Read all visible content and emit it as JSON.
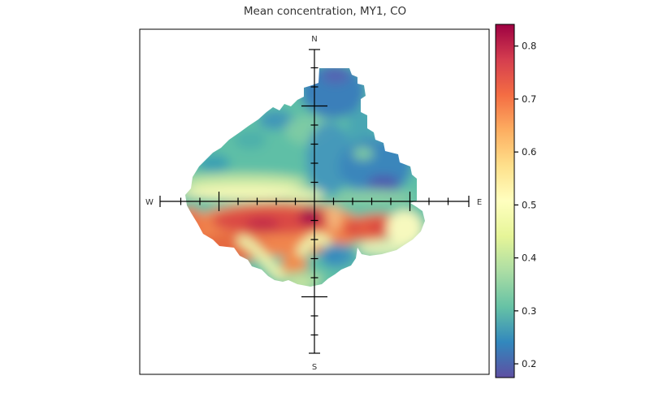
{
  "title": "Mean concentration, MY1, CO",
  "compass": {
    "north": "N",
    "east": "E",
    "south": "S",
    "west": "W"
  },
  "colorbar": {
    "ticks": [
      {
        "label": "0.2",
        "value": 0.2
      },
      {
        "label": "0.3",
        "value": 0.3
      },
      {
        "label": "0.4",
        "value": 0.4
      },
      {
        "label": "0.5",
        "value": 0.5
      },
      {
        "label": "0.6",
        "value": 0.6
      },
      {
        "label": "0.7",
        "value": 0.7
      },
      {
        "label": "0.8",
        "value": 0.8
      }
    ],
    "min_value": 0.17,
    "max_value": 0.84,
    "palette_top_to_bottom": [
      "#9E0142",
      "#D53E4F",
      "#F46D43",
      "#FDAE61",
      "#FEE08B",
      "#FFFFBF",
      "#E6F598",
      "#ABDDA4",
      "#66C2A5",
      "#3288BD",
      "#5E4FA2"
    ]
  },
  "chart_data": {
    "type": "heatmap",
    "subtype": "bivariate-polar-plot",
    "title": "Mean concentration, MY1, CO",
    "site": "MY1",
    "pollutant": "CO",
    "statistic": "Mean concentration",
    "color_scale": {
      "range": [
        0.17,
        0.84
      ],
      "tick_values": [
        0.2,
        0.3,
        0.4,
        0.5,
        0.6,
        0.7,
        0.8
      ],
      "palette": "Spectral (low=blue-purple, high=dark red)"
    },
    "compass_labels": [
      "N",
      "E",
      "S",
      "W"
    ],
    "radial_ticks": {
      "minor_per_side": 7,
      "major_at_tick": 5,
      "axis_end_bar_at_tick": 8,
      "tick_value_labels_visible": false
    },
    "features": [
      {
        "direction": "SW quadrant near centre",
        "description": "global maximum, dark red core just west of centre below the W-E axis",
        "value": 0.82
      },
      {
        "direction": "W to SW",
        "description": "broad high-concentration red/orange band south of the west axis",
        "value": 0.72
      },
      {
        "direction": "ESE",
        "description": "secondary orange-red maximum east of centre below the axis",
        "value": 0.7
      },
      {
        "direction": "E edge below axis",
        "description": "pale yellow fringe at far east extent",
        "value": 0.5
      },
      {
        "direction": "W along axis",
        "description": "pale yellow band just north of the west axis",
        "value": 0.49
      },
      {
        "direction": "S of centre",
        "description": "pale yellow-green valley curving below the red band",
        "value": 0.45
      },
      {
        "direction": "S",
        "description": "orange pocket inside the southern valley",
        "value": 0.62
      },
      {
        "direction": "SSE near centre",
        "description": "teal-blue pocket south-east of centre",
        "value": 0.27
      },
      {
        "direction": "NW quadrant",
        "description": "teal/green moderate concentrations",
        "value": 0.34
      },
      {
        "direction": "N at high radius",
        "description": "blue lobe with dark blue-purple cap",
        "value": 0.2
      },
      {
        "direction": "ENE",
        "description": "local dark blue-purple minimum near the east axis",
        "value": 0.19
      }
    ]
  }
}
